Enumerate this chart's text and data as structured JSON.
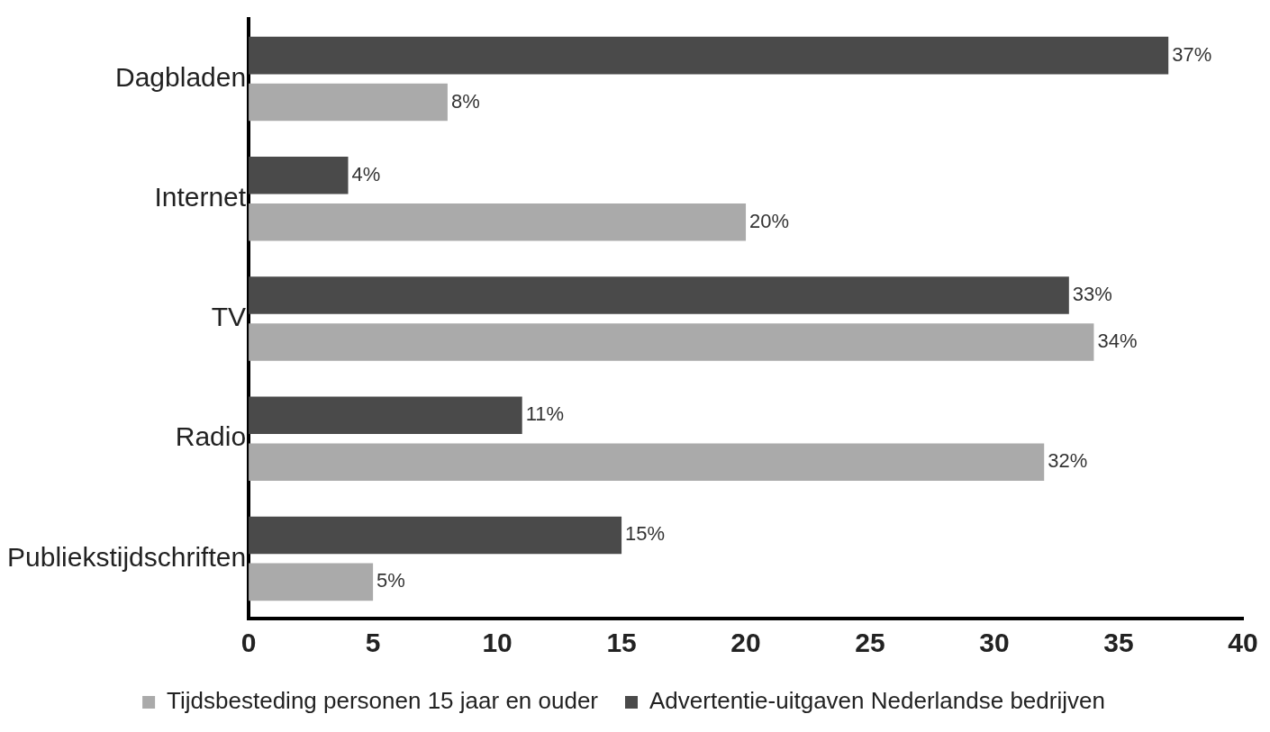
{
  "chart_data": {
    "type": "bar",
    "orientation": "horizontal",
    "categories": [
      "Dagbladen",
      "Internet",
      "TV",
      "Radio",
      "Publiekstijdschriften"
    ],
    "series": [
      {
        "name": "Advertentie-uitgaven Nederlandse bedrijven",
        "color": "#4a4a4a",
        "values": [
          37,
          4,
          33,
          11,
          15
        ],
        "value_labels": [
          "37%",
          "4%",
          "33%",
          "11%",
          "15%"
        ]
      },
      {
        "name": "Tijdsbesteding personen 15 jaar en ouder",
        "color": "#aaaaaa",
        "values": [
          8,
          20,
          34,
          32,
          5
        ],
        "value_labels": [
          "8%",
          "20%",
          "34%",
          "32%",
          "5%"
        ]
      }
    ],
    "xlim": [
      0,
      40
    ],
    "xticks": [
      0,
      5,
      10,
      15,
      20,
      25,
      30,
      35,
      40
    ],
    "grid": false,
    "legend": "bottom"
  }
}
